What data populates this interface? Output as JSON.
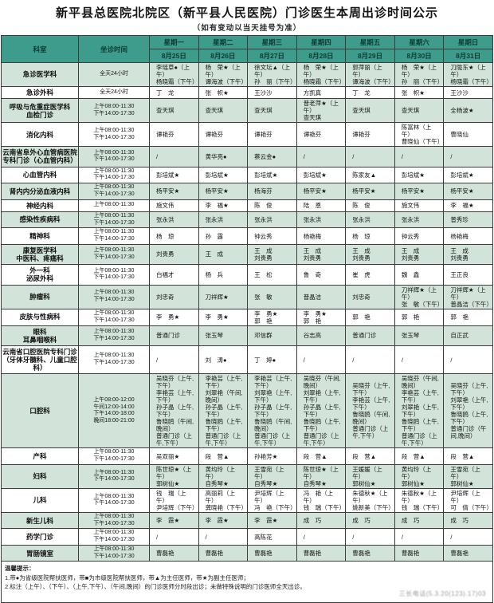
{
  "title": "新平县总医院北院区（新平县人民医院）门诊医生本周出诊时间公示",
  "subtitle": "（如有变动以当天挂号为准）",
  "colors": {
    "header_bg": "#3d9c8c",
    "row_green": "#d2e4d9",
    "border": "#3c3c3c"
  },
  "header": {
    "dept": "科室",
    "time": "坐诊时间",
    "days": [
      {
        "name": "星期一",
        "date": "8月25日"
      },
      {
        "name": "星期二",
        "date": "8月26日"
      },
      {
        "name": "星期三",
        "date": "8月27日"
      },
      {
        "name": "星期四",
        "date": "8月28日"
      },
      {
        "name": "星期五",
        "date": "8月29日"
      },
      {
        "name": "星期六",
        "date": "8月30日"
      },
      {
        "name": "星期日",
        "date": "8月31日"
      }
    ]
  },
  "rows": [
    {
      "dept": "急诊医学科",
      "time": "全天24小时",
      "cells": [
        "李瑶草●（上午）\n杨晓霜（下午）",
        "杨　荣★（上午）\n谭海波（下午）",
        "徐文坛▲（上午）\n孙　丽（下午）",
        "杨　荣★（上午）\n杨晓霜（下午）",
        "郭萍丽（上午）\n谭海波（下午）",
        "杨　荣★（上午）\n孙　丽（下午）",
        "刀陇东★（上午）\n杨晓霜（下午）"
      ]
    },
    {
      "dept": "急诊外科",
      "time": "全天24小时",
      "cells": [
        "丁　龙",
        "张　帜★",
        "王沙沙",
        "方凯真",
        "丁　龙",
        "张　帜★",
        "王沙沙"
      ]
    },
    {
      "dept": "呼吸与危重症医学科\n血检门诊",
      "time": "上午08:00-11:30\n下午14:00-17:30",
      "cells": [
        "查天琪",
        "查天琪",
        "查天琪",
        "普老萍★（上午）\n查天琪",
        "查天琪",
        "查天琪",
        "全杨波★"
      ]
    },
    {
      "dept": "消化内科",
      "time": "上午08:00-11:30\n下午14:00-17:30",
      "cells": [
        "谭艳芬",
        "谭艳芬",
        "谭艳芬",
        "谭艳芬",
        "谭艳芬",
        "陈富林（上午）\n曹晓仙（下午）",
        "曹晓仙"
      ]
    },
    {
      "dept": "云南省阜外心血管病医院\n专科门诊（心血管内科）",
      "time": "上午08:00-11:30\n下午14:00-17:30",
      "cells": [
        "/",
        "黄华亮●",
        "蔡云金●",
        "/",
        "/",
        "/",
        "/"
      ]
    },
    {
      "dept": "心血管内科",
      "time": "上午08:00-11:30\n下午14:00-17:30",
      "cells": [
        "彭培斌★",
        "彭培斌★",
        "彭培斌★",
        "彭培斌★",
        "陈家友▲",
        "彭培斌★",
        "彭培斌★"
      ]
    },
    {
      "dept": "肾内内分泌血液内科",
      "time": "上午08:00-11:30\n下午14:00-17:30",
      "cells": [
        "杨平安★",
        "杨平安★",
        "杨海芬",
        "杨平安★",
        "杨平安★",
        "杨平安★",
        "杨平安★"
      ]
    },
    {
      "dept": "神经内科",
      "time": "上午08:00-11:30",
      "cells": [
        "施文伟",
        "李　福★",
        "陈　俊",
        "陆　恩",
        "陈　俊",
        "施文伟",
        "李　福★"
      ]
    },
    {
      "dept": "感染性疾病科",
      "time": "上午08:00-11:30\n下午14:00-17:30",
      "cells": [
        "张永洪",
        "张永洪",
        "张永洪",
        "张永洪",
        "张永洪",
        "张永洪",
        "普秀珍"
      ]
    },
    {
      "dept": "精神科",
      "time": "上午08:00-11:30\n下午14:00-17:30",
      "cells": [
        "杨　琼",
        "孙　露",
        "钟云秀",
        "杨艳梅",
        "杨　琼",
        "钟云秀",
        "杨艳梅"
      ]
    },
    {
      "dept": "康复医学科\n中医科、疼痛科",
      "time": "上午08:00-11:30\n下午14:00-17:30",
      "cells": [
        "刘贵勇",
        "王　成",
        "王　成\n刘贵勇",
        "王　成\n刘贵勇",
        "王　成\n刘贵勇",
        "王　成\n刘贵勇",
        "王　成\n刘贵勇"
      ]
    },
    {
      "dept": "外一科\n泌尿外科",
      "time": "上午08:00-11:30\n下午14:00-17:30",
      "cells": [
        "白福才",
        "杨　兵",
        "王　松",
        "鲁　奇",
        "崔　虎",
        "魏　鑫",
        "王正良"
      ]
    },
    {
      "dept": "肿瘤科",
      "time": "上午08:00-11:30\n下午14:00-17:30",
      "cells": [
        "刘忠奇",
        "刀祥辉★",
        "张　敏",
        "普晶洁",
        "刘忠奇",
        "刀祥辉★（上午）\n张　敏（下午）",
        "刀祥辉★（上午）\n普晶洁（下午）"
      ]
    },
    {
      "dept": "皮肤与性病科",
      "time": "上午08:00-11:30\n下午14:00-17:30",
      "cells": [
        "李　勇★",
        "李　勇★",
        "李　勇★\n郭　艳",
        "李　勇★\n郭　艳",
        "郭　艳",
        "郭　艳",
        "郭　艳"
      ]
    },
    {
      "dept": "眼科\n耳鼻咽喉科",
      "time": "上午08:00-11:30\n下午14:00-17:30",
      "cells": [
        "普通门诊",
        "张玉琴",
        "邓信群",
        "谷志高",
        "普通门诊",
        "张玉琴",
        "自正武"
      ]
    },
    {
      "dept": "云南省口腔医院专科门诊\n（牙体牙髓科、儿童口腔科）",
      "time": "上午08:00-11:30\n下午14:00-17:30",
      "cells": [
        "/",
        "刘　涛●",
        "丁　婷●",
        "/",
        "/",
        "/",
        "/"
      ]
    },
    {
      "dept": "口腔科",
      "time": "上午08:00-12:00\n午间12:00-14:00\n下午14:00-18:00\n晚间18:00-21:00",
      "cells": [
        "吴晓芬（上午,下午）\n李艳芸（上午,下午）\n孙子晶（上午,下午）\n鲁晓鸥（午间,晚间）\n普通门诊（上午,下午）",
        "李艳芸（上午,下午）\n刘翠艳（午间,晚间）\n孙子晶（上午,下午）\n鲁晓鸥（上午,下午）\n普通门诊（上午,下午）",
        "李艳芸（上午,下午）\n刘翠艳（上午,下午）\n孙子晶（上午,下午）\n鲁晓鸥（午间,晚间）\n普通门诊（上午,下午）",
        "吴晓芬（午间,晚间）\n刘翠艳（上午,下午）\n孙子晶（上午,下午）\n鲁晓鸥（上午,下午）\n普通门诊（上午,下午）",
        "吴晓芬（上午,下午）\n李艳芸（上午,下午）\n鲁晓鸥（午间,晚间）\n普通门诊（上午,下午）",
        "吴晓芬（午间,晚间）\n李艳芸（上午,下午）\n刘翠艳（上午,下午）\n鲁晓鸥（上午,下午）\n普通门诊（上午,下午）",
        "吴晓芬（上午,下午）\n刘翠艳（上午,下午）\n鲁晓鸥（上午,下午）\n普通门诊（午间,晚间）"
      ]
    },
    {
      "dept": "产科",
      "time": "上午08:00-11:30\n下午14:00-17:30",
      "cells": [
        "吴双丽★",
        "段　营▲",
        "孙艳芳★",
        "段　营▲",
        "段　营▲",
        "段　营▲",
        "段　营▲"
      ]
    },
    {
      "dept": "妇科",
      "time": "上午08:00-11:30\n下午14:00-17:30",
      "cells": [
        "陈世琼★（上午）\n郭树仙★",
        "黄均玲（上午）\n自秀琴★",
        "王雪宛（上午）\n自秀琴★",
        "陈世琼★（上午）\n自秀琴★",
        "王媛媛（上午）\n郭树仙★",
        "黄均玲（上午）\n郭树仙★",
        "王雪宛（上午）\n郭树仙★"
      ]
    },
    {
      "dept": "儿科",
      "time": "上午08:00-11:30\n下午14:00-17:30",
      "cells": [
        "钱　瑞（上午）\n尹培辉（下午）",
        "高丽莉（上午）\n龚晓艳（下午）",
        "尹培辉（上午）\n冯　艳（下午）",
        "冯　艳（上午）\n钱　瑞（下午）",
        "朱德秋★（上午）\n姚新美（下午）",
        "朱德秋★（上午）\n钱　瑞（下午）",
        "尹培辉（上午）\n可　倩（下午）"
      ]
    },
    {
      "dept": "新生儿科",
      "time": "上午08:00-11:30\n下午14:00-17:30",
      "cells": [
        "李　霞★",
        "李　霞★",
        "李　霞★",
        "成　巧",
        "成　巧",
        "成　巧",
        "成　巧"
      ]
    },
    {
      "dept": "药学门诊",
      "time": "上午08:00-11:30\n下午14:00-17:30",
      "cells": [
        "/",
        "/",
        "高陈花",
        "/",
        "/",
        "/",
        "/"
      ]
    },
    {
      "dept": "胃肠镜室",
      "time": "上午08:00-11:30\n下午14:00-17:30",
      "cells": [
        "曹磊艳",
        "曹磊艳",
        "曹磊艳",
        "曹磊艳",
        "曹磊艳",
        "曹磊艳",
        "曹磊艳"
      ]
    }
  ],
  "notes": {
    "title": "温馨提示：",
    "line1": "1.带●为省级医院帮扶医师，带■为市级医院帮扶医师，带▲为主任医师，带★为副主任医师；",
    "line2": "2.标注（上午）、（下午）、（上午,下午）、（午间,晚间）的门诊医师分时段出诊；未做特殊说明的门诊医师全天出诊。",
    "stamp": "三长电话(5.3.20(123).17)03"
  }
}
